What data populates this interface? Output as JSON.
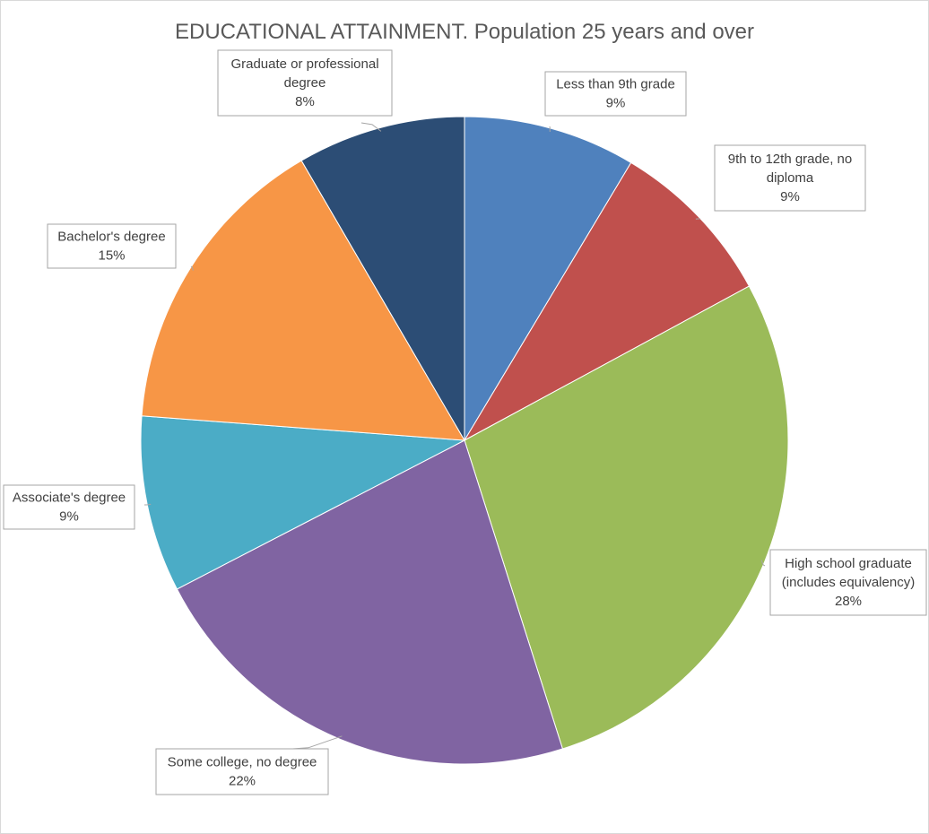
{
  "chart_data": {
    "type": "pie",
    "title": "EDUCATIONAL ATTAINMENT. Population 25 years and over",
    "start_angle_deg": 0,
    "direction": "clockwise",
    "legend": "none",
    "slices": [
      {
        "label_lines": [
          "Less than 9th grade"
        ],
        "percent_label": "9%",
        "value": 8.6,
        "color": "#4F81BD"
      },
      {
        "label_lines": [
          "9th to 12th grade, no",
          "diploma"
        ],
        "percent_label": "9%",
        "value": 8.5,
        "color": "#C0504D"
      },
      {
        "label_lines": [
          "High school graduate",
          "(includes equivalency)"
        ],
        "percent_label": "28%",
        "value": 28.0,
        "color": "#9BBB59"
      },
      {
        "label_lines": [
          "Some college, no degree"
        ],
        "percent_label": "22%",
        "value": 22.3,
        "color": "#8064A2"
      },
      {
        "label_lines": [
          "Associate's degree"
        ],
        "percent_label": "9%",
        "value": 8.8,
        "color": "#4BACC6"
      },
      {
        "label_lines": [
          "Bachelor's degree"
        ],
        "percent_label": "15%",
        "value": 15.4,
        "color": "#F79646"
      },
      {
        "label_lines": [
          "Graduate or professional",
          "degree"
        ],
        "percent_label": "8%",
        "value": 8.4,
        "color": "#2C4D75"
      }
    ]
  }
}
